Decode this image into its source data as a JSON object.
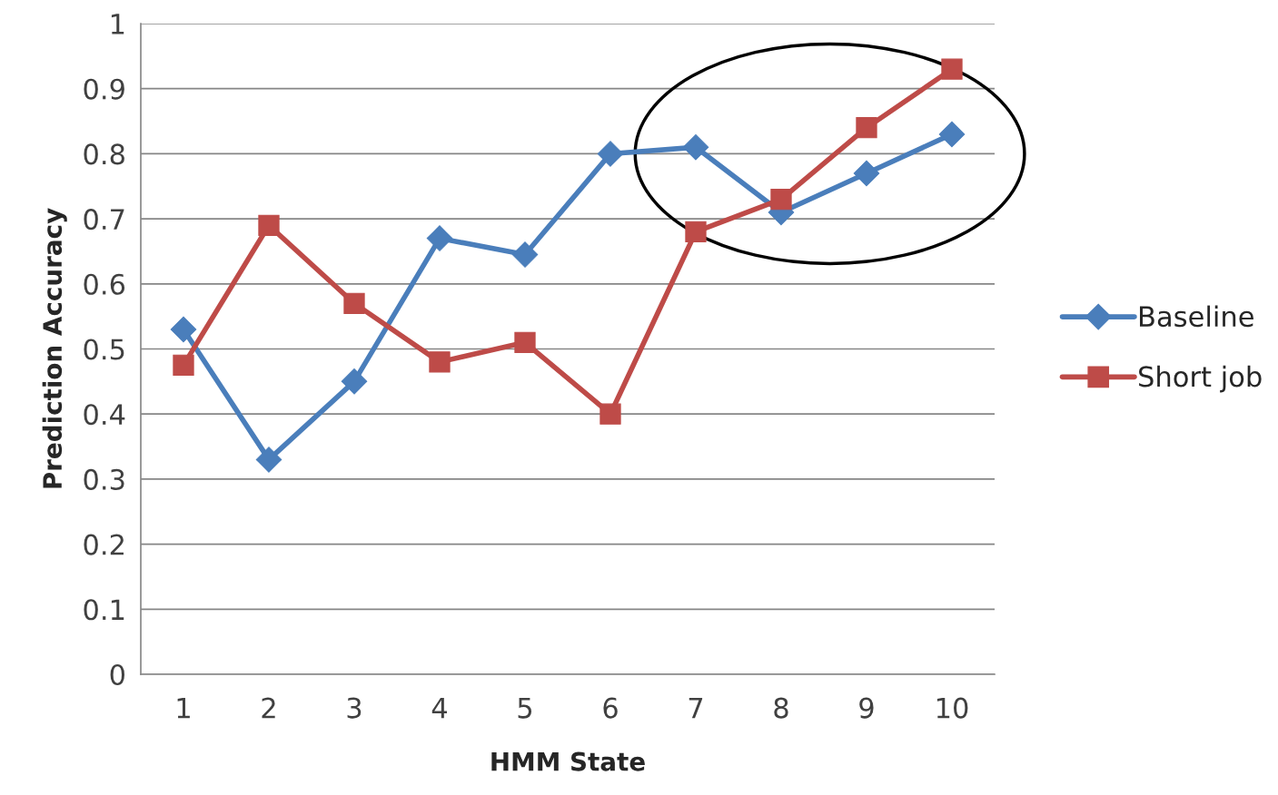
{
  "chart_data": {
    "type": "line",
    "xlabel": "HMM State",
    "ylabel": "Prediction Accuracy",
    "categories": [
      "1",
      "2",
      "3",
      "4",
      "5",
      "6",
      "7",
      "8",
      "9",
      "10"
    ],
    "series": [
      {
        "name": "Baseline",
        "color": "#4a7ebb",
        "marker": "diamond",
        "values": [
          0.53,
          0.33,
          0.45,
          0.67,
          0.645,
          0.8,
          0.81,
          0.71,
          0.77,
          0.83
        ]
      },
      {
        "name": "Short job",
        "color": "#be4b48",
        "marker": "square",
        "values": [
          0.475,
          0.69,
          0.57,
          0.48,
          0.51,
          0.4,
          0.68,
          0.73,
          0.84,
          0.93
        ]
      }
    ],
    "ylim": [
      0,
      1
    ],
    "yticks": [
      0,
      {
        "value": 0.1,
        "label": "0.1"
      },
      {
        "value": 0.2,
        "label": "0.2"
      },
      {
        "value": 0.3,
        "label": "0.3"
      },
      {
        "value": 0.4,
        "label": "0.4"
      },
      {
        "value": 0.5,
        "label": "0.5"
      },
      {
        "value": 0.6,
        "label": "0.6"
      },
      {
        "value": 0.7,
        "label": "0.7"
      },
      {
        "value": 0.8,
        "label": "0.8"
      },
      {
        "value": 0.9,
        "label": "0.9"
      },
      1
    ],
    "grid": "y",
    "legend": "right",
    "line_style": "solid"
  }
}
